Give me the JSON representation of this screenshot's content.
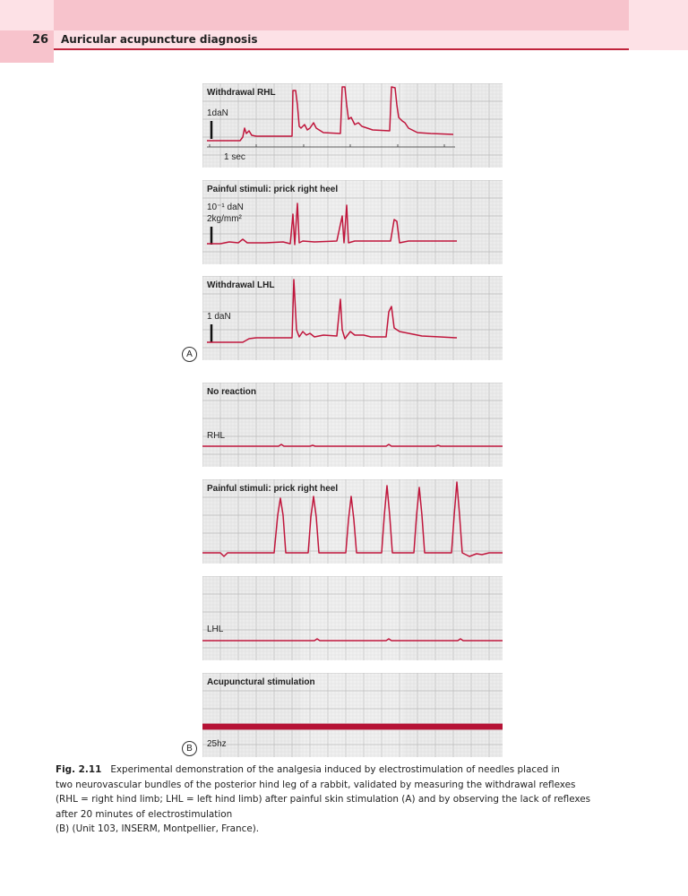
{
  "header": {
    "page_number": "26",
    "running_title": "Auricular acupuncture diagnosis"
  },
  "colors": {
    "trace": "#c0163c",
    "header_band": "#fde1e6",
    "header_band_strong": "#f7c3cc",
    "header_rule": "#c0243c"
  },
  "figure": {
    "group_a_label": "A",
    "group_b_label": "B",
    "panels": [
      {
        "title": "Withdrawal RHL",
        "scale": [
          "1daN"
        ],
        "time_scale": "1 sec"
      },
      {
        "title": "Painful stimuli: prick right heel",
        "scale": [
          "10⁻¹ daN",
          "2kg/mm²"
        ]
      },
      {
        "title": "Withdrawal LHL",
        "scale": [
          "1 daN"
        ]
      },
      {
        "title": "No reaction",
        "trace_label": "RHL"
      },
      {
        "title": "Painful stimuli: prick right heel"
      },
      {
        "title": "",
        "trace_label": "LHL"
      },
      {
        "title": "Acupunctural stimulation",
        "trace_label": "25hz"
      }
    ]
  },
  "caption": {
    "label": "Fig. 2.11",
    "lines": [
      "Experimental demonstration of the analgesia induced by electrostimulation of needles placed in",
      "two neurovascular bundles of the posterior hind leg of a rabbit, validated by measuring the withdrawal reflexes",
      "(RHL = right hind limb; LHL = left hind limb) after painful skin stimulation (A) and by observing the lack of reflexes",
      "after 20 minutes of electrostimulation",
      "(B) (Unit 103, INSERM, Montpellier, France)."
    ]
  }
}
